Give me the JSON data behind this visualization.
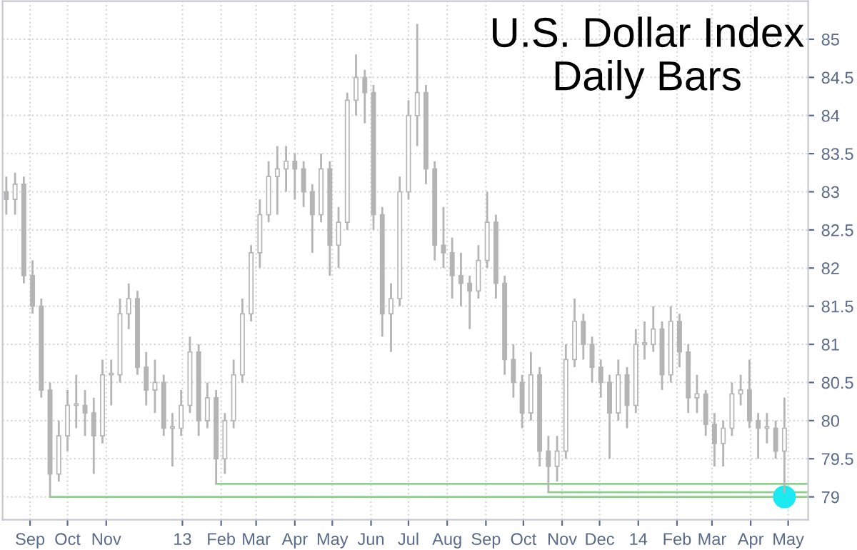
{
  "chart_data": {
    "type": "candlestick",
    "title": "U.S. Dollar Index\nDaily Bars",
    "x": [
      "2012-08-13",
      "2012-08-20",
      "2012-08-27",
      "2012-09-03",
      "2012-09-10",
      "2012-09-17",
      "2012-09-24",
      "2012-10-01",
      "2012-10-08",
      "2012-10-15",
      "2012-10-22",
      "2012-10-29",
      "2012-11-05",
      "2012-11-12",
      "2012-11-19",
      "2012-11-26",
      "2012-12-03",
      "2012-12-10",
      "2012-12-17",
      "2012-12-24",
      "2012-12-31",
      "2013-01-07",
      "2013-01-14",
      "2013-01-21",
      "2013-01-28",
      "2013-02-04",
      "2013-02-11",
      "2013-02-18",
      "2013-02-25",
      "2013-03-04",
      "2013-03-11",
      "2013-03-18",
      "2013-03-25",
      "2013-04-01",
      "2013-04-08",
      "2013-04-15",
      "2013-04-22",
      "2013-04-29",
      "2013-05-06",
      "2013-05-13",
      "2013-05-20",
      "2013-05-27",
      "2013-06-03",
      "2013-06-10",
      "2013-06-17",
      "2013-06-24",
      "2013-07-01",
      "2013-07-08",
      "2013-07-15",
      "2013-07-22",
      "2013-07-29",
      "2013-08-05",
      "2013-08-12",
      "2013-08-19",
      "2013-08-26",
      "2013-09-02",
      "2013-09-09",
      "2013-09-16",
      "2013-09-23",
      "2013-09-30",
      "2013-10-07",
      "2013-10-14",
      "2013-10-21",
      "2013-10-28",
      "2013-11-04",
      "2013-11-11",
      "2013-11-18",
      "2013-11-25",
      "2013-12-02",
      "2013-12-09",
      "2013-12-16",
      "2013-12-23",
      "2013-12-30",
      "2014-01-06",
      "2014-01-13",
      "2014-01-20",
      "2014-01-27",
      "2014-02-03",
      "2014-02-10",
      "2014-02-17",
      "2014-02-24",
      "2014-03-03",
      "2014-03-10",
      "2014-03-17",
      "2014-03-24",
      "2014-03-31",
      "2014-04-07",
      "2014-04-14",
      "2014-04-21",
      "2014-04-28"
    ],
    "ohlc": [
      [
        83.0,
        83.2,
        82.7,
        82.9
      ],
      [
        82.9,
        83.25,
        82.7,
        83.1
      ],
      [
        83.1,
        83.2,
        81.8,
        81.9
      ],
      [
        81.9,
        82.1,
        81.4,
        81.5
      ],
      [
        81.5,
        81.6,
        80.3,
        80.4
      ],
      [
        80.4,
        80.5,
        79.0,
        79.3
      ],
      [
        79.3,
        80.0,
        79.2,
        79.8
      ],
      [
        79.8,
        80.4,
        79.6,
        80.2
      ],
      [
        80.2,
        80.6,
        79.9,
        80.2
      ],
      [
        80.2,
        80.4,
        79.8,
        80.1
      ],
      [
        80.1,
        80.3,
        79.3,
        79.8
      ],
      [
        79.8,
        80.8,
        79.7,
        80.6
      ],
      [
        80.6,
        80.8,
        80.2,
        80.6
      ],
      [
        80.6,
        81.6,
        80.5,
        81.4
      ],
      [
        81.4,
        81.8,
        81.2,
        81.6
      ],
      [
        81.6,
        81.7,
        80.6,
        80.7
      ],
      [
        80.7,
        80.9,
        80.2,
        80.4
      ],
      [
        80.4,
        80.8,
        80.1,
        80.5
      ],
      [
        80.5,
        80.6,
        79.8,
        79.9
      ],
      [
        79.9,
        80.1,
        79.4,
        79.9
      ],
      [
        79.9,
        80.4,
        79.8,
        80.2
      ],
      [
        80.2,
        81.1,
        80.1,
        80.9
      ],
      [
        80.9,
        81.0,
        79.8,
        80.0
      ],
      [
        80.0,
        80.5,
        79.9,
        80.3
      ],
      [
        80.3,
        80.4,
        79.17,
        79.5
      ],
      [
        79.5,
        80.1,
        79.3,
        80.0
      ],
      [
        80.0,
        80.8,
        79.9,
        80.6
      ],
      [
        80.6,
        81.6,
        80.5,
        81.4
      ],
      [
        81.4,
        82.3,
        81.3,
        82.2
      ],
      [
        82.2,
        82.9,
        82.0,
        82.7
      ],
      [
        82.7,
        83.4,
        82.6,
        83.2
      ],
      [
        83.2,
        83.6,
        82.7,
        83.3
      ],
      [
        83.3,
        83.6,
        83.0,
        83.4
      ],
      [
        83.4,
        83.5,
        82.9,
        83.3
      ],
      [
        83.3,
        83.4,
        82.8,
        83.0
      ],
      [
        83.0,
        83.1,
        82.2,
        82.7
      ],
      [
        82.7,
        83.5,
        82.6,
        83.3
      ],
      [
        83.3,
        83.4,
        81.9,
        82.3
      ],
      [
        82.3,
        82.8,
        82.0,
        82.6
      ],
      [
        82.6,
        84.3,
        82.5,
        84.2
      ],
      [
        84.2,
        84.8,
        84.0,
        84.5
      ],
      [
        84.5,
        84.6,
        83.9,
        84.3
      ],
      [
        84.3,
        84.4,
        82.5,
        82.7
      ],
      [
        82.7,
        82.8,
        81.1,
        81.4
      ],
      [
        81.4,
        81.8,
        80.9,
        81.6
      ],
      [
        81.6,
        83.2,
        81.5,
        83.0
      ],
      [
        83.0,
        84.2,
        82.9,
        84.0
      ],
      [
        84.0,
        85.2,
        83.6,
        84.3
      ],
      [
        84.3,
        84.4,
        83.1,
        83.3
      ],
      [
        83.3,
        83.4,
        82.1,
        82.3
      ],
      [
        82.3,
        82.8,
        82.0,
        82.2
      ],
      [
        82.2,
        82.4,
        81.6,
        81.9
      ],
      [
        81.9,
        82.2,
        81.5,
        81.8
      ],
      [
        81.8,
        81.9,
        81.2,
        81.7
      ],
      [
        81.7,
        82.3,
        81.6,
        82.1
      ],
      [
        82.1,
        83.0,
        82.0,
        82.6
      ],
      [
        82.6,
        82.7,
        81.6,
        81.8
      ],
      [
        81.8,
        81.9,
        80.6,
        80.8
      ],
      [
        80.8,
        81.0,
        80.3,
        80.5
      ],
      [
        80.5,
        80.6,
        79.9,
        80.1
      ],
      [
        80.1,
        80.9,
        80.0,
        80.6
      ],
      [
        80.6,
        80.7,
        79.4,
        79.6
      ],
      [
        79.6,
        79.8,
        79.06,
        79.4
      ],
      [
        79.4,
        79.8,
        79.2,
        79.6
      ],
      [
        79.6,
        81.0,
        79.5,
        80.8
      ],
      [
        80.8,
        81.6,
        80.7,
        81.3
      ],
      [
        81.3,
        81.4,
        80.8,
        81.0
      ],
      [
        81.0,
        81.1,
        80.5,
        80.7
      ],
      [
        80.7,
        80.8,
        80.3,
        80.5
      ],
      [
        80.5,
        80.6,
        79.5,
        80.1
      ],
      [
        80.1,
        80.8,
        80.0,
        80.6
      ],
      [
        80.6,
        80.7,
        79.9,
        80.2
      ],
      [
        80.2,
        81.2,
        80.1,
        81.0
      ],
      [
        81.0,
        81.3,
        80.8,
        81.0
      ],
      [
        81.0,
        81.5,
        80.9,
        81.2
      ],
      [
        81.2,
        81.3,
        80.4,
        80.6
      ],
      [
        80.6,
        81.5,
        80.5,
        81.3
      ],
      [
        81.3,
        81.4,
        80.7,
        80.9
      ],
      [
        80.9,
        81.0,
        80.1,
        80.3
      ],
      [
        80.3,
        80.6,
        80.1,
        80.35
      ],
      [
        80.35,
        80.4,
        79.8,
        79.95
      ],
      [
        79.95,
        80.1,
        79.4,
        79.7
      ],
      [
        79.7,
        80.0,
        79.4,
        79.9
      ],
      [
        79.9,
        80.5,
        79.8,
        80.35
      ],
      [
        80.35,
        80.6,
        80.2,
        80.4
      ],
      [
        80.4,
        80.8,
        79.9,
        80.0
      ],
      [
        80.0,
        80.1,
        79.5,
        79.9
      ],
      [
        79.9,
        80.1,
        79.7,
        79.9
      ],
      [
        79.9,
        80.0,
        79.5,
        79.6
      ],
      [
        79.6,
        80.3,
        79.05,
        79.9
      ]
    ],
    "color": "#b4b4b4",
    "series": [
      {
        "type": "line",
        "color": "#8fd08f",
        "x": [
          "2012-09-17",
          "2014-05-17"
        ],
        "values": [
          79.0,
          79.0
        ]
      },
      {
        "type": "line",
        "color": "#8fd08f",
        "x": [
          "2013-01-28",
          "2014-05-17"
        ],
        "values": [
          79.17,
          79.17
        ]
      },
      {
        "type": "line",
        "color": "#8fd08f",
        "x": [
          "2013-10-21",
          "2014-05-17"
        ],
        "values": [
          79.06,
          79.06
        ]
      },
      {
        "type": "scatter",
        "color": "#1de9f0",
        "x": [
          "2014-04-28"
        ],
        "values": [
          79.0
        ]
      }
    ],
    "xlim": [
      "2012-08-10",
      "2014-05-17"
    ],
    "xticks": [
      {
        "value": "2012-09-01",
        "label": "Sep"
      },
      {
        "value": "2012-10-01",
        "label": "Oct"
      },
      {
        "value": "2012-11-01",
        "label": "Nov"
      },
      {
        "value": "2013-01-01",
        "label": "13"
      },
      {
        "value": "2013-02-01",
        "label": "Feb"
      },
      {
        "value": "2013-03-01",
        "label": "Mar"
      },
      {
        "value": "2013-04-01",
        "label": "Apr"
      },
      {
        "value": "2013-05-01",
        "label": "May"
      },
      {
        "value": "2013-06-01",
        "label": "Jun"
      },
      {
        "value": "2013-07-01",
        "label": "Jul"
      },
      {
        "value": "2013-08-01",
        "label": "Aug"
      },
      {
        "value": "2013-09-01",
        "label": "Sep"
      },
      {
        "value": "2013-10-01",
        "label": "Oct"
      },
      {
        "value": "2013-11-01",
        "label": "Nov"
      },
      {
        "value": "2013-12-01",
        "label": "Dec"
      },
      {
        "value": "2014-01-01",
        "label": "14"
      },
      {
        "value": "2014-02-01",
        "label": "Feb"
      },
      {
        "value": "2014-03-01",
        "label": "Mar"
      },
      {
        "value": "2014-04-01",
        "label": "Apr"
      },
      {
        "value": "2014-05-01",
        "label": "May"
      }
    ],
    "ylim": [
      78.7,
      85.5
    ],
    "yticks": [
      79,
      79.5,
      80,
      80.5,
      81,
      81.5,
      82,
      82.5,
      83,
      83.5,
      84,
      84.5,
      85
    ],
    "grid": true
  }
}
